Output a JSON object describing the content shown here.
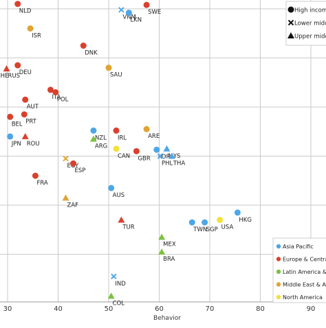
{
  "chart_data": {
    "type": "scatter",
    "title": "",
    "xlabel": "Behavior",
    "ylabel": "",
    "xlim": [
      28.5,
      93
    ],
    "ylim": [
      -9.7,
      51.8
    ],
    "x_ticks": [
      30,
      40,
      50,
      60,
      70,
      80,
      90
    ],
    "y_gridlines": [
      0,
      10,
      20,
      30,
      40,
      50
    ],
    "grid": true,
    "legends": {
      "income": {
        "placement": "top-right",
        "items": [
          {
            "label": "High income",
            "marker": "circle"
          },
          {
            "label": "Lower middle",
            "marker": "cross"
          },
          {
            "label": "Upper middle",
            "marker": "triangle"
          }
        ]
      },
      "region": {
        "placement": "bottom-right",
        "items": [
          {
            "label": "Asia Pacific",
            "color": "#4da6e8"
          },
          {
            "label": "Europe & Central A",
            "color": "#d9412e"
          },
          {
            "label": "Latin America & Ca",
            "color": "#7dc142"
          },
          {
            "label": "Middle East & Afric",
            "color": "#e0a433"
          },
          {
            "label": "North America",
            "color": "#f2e13a"
          }
        ]
      }
    },
    "colors": {
      "asia": "#4da6e8",
      "europe": "#d9412e",
      "latam": "#7dc142",
      "mea": "#e0a433",
      "na": "#f2e13a"
    },
    "points": [
      {
        "label": "NLD",
        "x": 32.0,
        "y": 51.0,
        "region": "europe",
        "income": "high"
      },
      {
        "label": "SWE",
        "x": 57.5,
        "y": 50.8,
        "region": "europe",
        "income": "high"
      },
      {
        "label": "VNM",
        "x": 52.5,
        "y": 49.8,
        "region": "asia",
        "income": "lower"
      },
      {
        "label": "LKN",
        "x": 54.0,
        "y": 49.2,
        "region": "asia",
        "income": "high"
      },
      {
        "label": "ISR",
        "x": 34.5,
        "y": 46.0,
        "region": "mea",
        "income": "high"
      },
      {
        "label": "DNK",
        "x": 45.0,
        "y": 42.5,
        "region": "europe",
        "income": "high"
      },
      {
        "label": "DEU",
        "x": 32.0,
        "y": 38.5,
        "region": "europe",
        "income": "high"
      },
      {
        "label": "RUS",
        "x": 29.8,
        "y": 37.8,
        "region": "europe",
        "income": "upper"
      },
      {
        "label": "CHE",
        "x": 27.5,
        "y": 37.8,
        "region": "europe",
        "income": "high"
      },
      {
        "label": "SAU",
        "x": 50.0,
        "y": 38.0,
        "region": "mea",
        "income": "high"
      },
      {
        "label": "ITA",
        "x": 38.5,
        "y": 33.5,
        "region": "europe",
        "income": "high"
      },
      {
        "label": "POL",
        "x": 39.5,
        "y": 33.0,
        "region": "europe",
        "income": "high"
      },
      {
        "label": "AUT",
        "x": 33.5,
        "y": 31.5,
        "region": "europe",
        "income": "high"
      },
      {
        "label": "BEL",
        "x": 30.5,
        "y": 28.0,
        "region": "europe",
        "income": "high"
      },
      {
        "label": "PRT",
        "x": 33.3,
        "y": 28.5,
        "region": "europe",
        "income": "high"
      },
      {
        "label": "JPN",
        "x": 30.5,
        "y": 24.0,
        "region": "asia",
        "income": "high"
      },
      {
        "label": "ROU",
        "x": 33.5,
        "y": 24.0,
        "region": "europe",
        "income": "upper"
      },
      {
        "label": "NZL",
        "x": 47.0,
        "y": 25.2,
        "region": "asia",
        "income": "high"
      },
      {
        "label": "ARG",
        "x": 47.0,
        "y": 23.5,
        "region": "latam",
        "income": "upper"
      },
      {
        "label": "IRL",
        "x": 51.5,
        "y": 25.2,
        "region": "europe",
        "income": "high"
      },
      {
        "label": "ARE",
        "x": 57.5,
        "y": 25.5,
        "region": "mea",
        "income": "high"
      },
      {
        "label": "CAN",
        "x": 51.5,
        "y": 21.5,
        "region": "na",
        "income": "high"
      },
      {
        "label": "GBR",
        "x": 55.5,
        "y": 21.0,
        "region": "europe",
        "income": "high"
      },
      {
        "label": "KOR",
        "x": 59.5,
        "y": 21.3,
        "region": "asia",
        "income": "high"
      },
      {
        "label": "MYS",
        "x": 61.5,
        "y": 21.5,
        "region": "asia",
        "income": "upper"
      },
      {
        "label": "PHL",
        "x": 60.2,
        "y": 20.0,
        "region": "asia",
        "income": "lower"
      },
      {
        "label": "THA",
        "x": 62.5,
        "y": 20.0,
        "region": "asia",
        "income": "upper"
      },
      {
        "label": "EGY",
        "x": 41.5,
        "y": 19.5,
        "region": "mea",
        "income": "lower"
      },
      {
        "label": "ESP",
        "x": 43.0,
        "y": 18.5,
        "region": "europe",
        "income": "high"
      },
      {
        "label": "FRA",
        "x": 35.5,
        "y": 16.0,
        "region": "europe",
        "income": "high"
      },
      {
        "label": "ZAF",
        "x": 41.5,
        "y": 11.5,
        "region": "mea",
        "income": "upper"
      },
      {
        "label": "AUS",
        "x": 50.5,
        "y": 13.5,
        "region": "asia",
        "income": "high"
      },
      {
        "label": "HKG",
        "x": 75.5,
        "y": 8.5,
        "region": "asia",
        "income": "high"
      },
      {
        "label": "USA",
        "x": 72.0,
        "y": 7.0,
        "region": "na",
        "income": "high"
      },
      {
        "label": "TWN",
        "x": 66.5,
        "y": 6.5,
        "region": "asia",
        "income": "high"
      },
      {
        "label": "SGP",
        "x": 69.0,
        "y": 6.5,
        "region": "asia",
        "income": "high"
      },
      {
        "label": "TUR",
        "x": 52.5,
        "y": 7.0,
        "region": "europe",
        "income": "upper"
      },
      {
        "label": "MEX",
        "x": 60.5,
        "y": 3.5,
        "region": "latam",
        "income": "upper"
      },
      {
        "label": "BRA",
        "x": 60.5,
        "y": 0.5,
        "region": "latam",
        "income": "upper"
      },
      {
        "label": "IND",
        "x": 51.0,
        "y": -4.5,
        "region": "asia",
        "income": "lower"
      },
      {
        "label": "COL",
        "x": 50.5,
        "y": -8.5,
        "region": "latam",
        "income": "upper"
      }
    ]
  }
}
